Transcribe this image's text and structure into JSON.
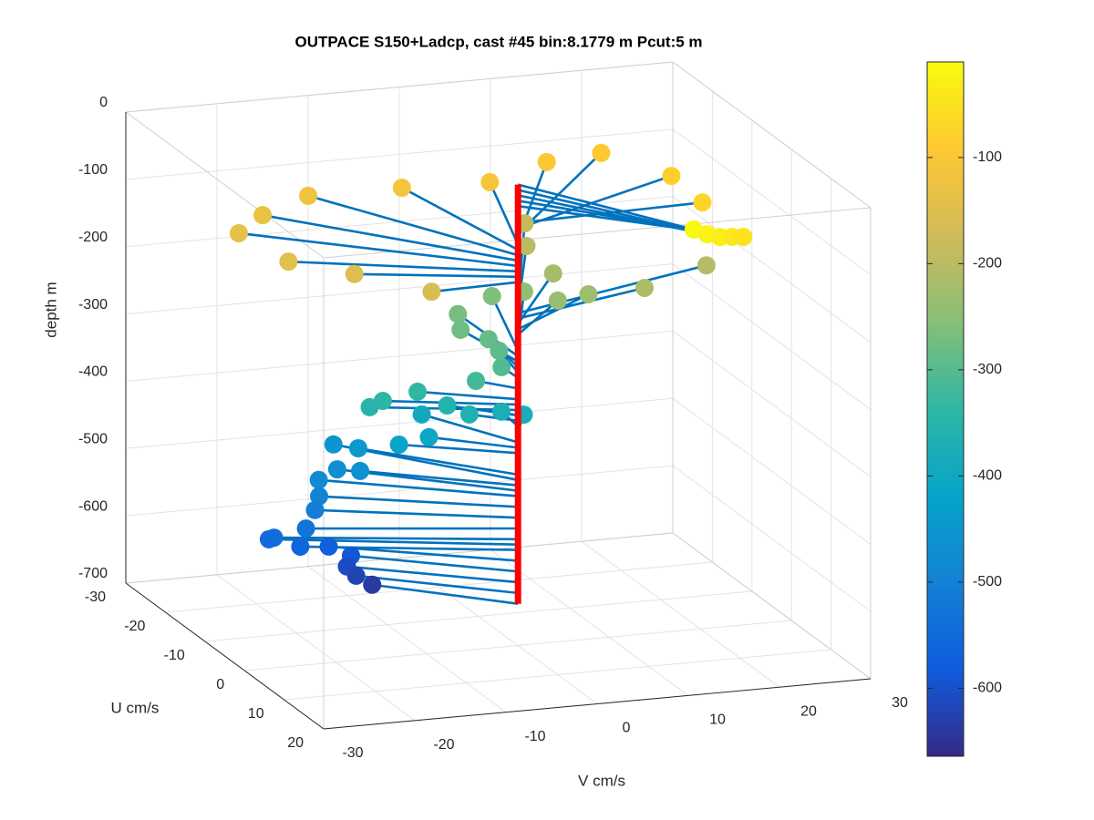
{
  "chart_data": {
    "type": "scatter3d",
    "title": "OUTPACE S150+Ladcp, cast #45 bin:8.1779 m  Pcut:5 m",
    "xlabel": "V cm/s",
    "ylabel": "U cm/s",
    "zlabel": "depth m",
    "xlim": [
      -30,
      30
    ],
    "xticks": [
      -30,
      -20,
      -10,
      0,
      10,
      20,
      30
    ],
    "ylim": [
      -30,
      20
    ],
    "yticks": [
      -30,
      -20,
      -10,
      0,
      10,
      20
    ],
    "zlim": [
      -700,
      0
    ],
    "zticks": [
      -700,
      -600,
      -500,
      -400,
      -300,
      -200,
      -100,
      0
    ],
    "grid": true,
    "line_color": "#0072bd",
    "profile_color": "#ff0000",
    "colormap": [
      "#352a87",
      "#0f5cdd",
      "#1481d6",
      "#06a4ca",
      "#2eb7a4",
      "#87bf77",
      "#d1bb59",
      "#fec832",
      "#f9fb0e"
    ],
    "clim": [
      -664,
      -10
    ],
    "cticks": [
      -600,
      -500,
      -400,
      -300,
      -200,
      -100
    ],
    "u": [
      18.6,
      18.8,
      18.4,
      17.0,
      15.7,
      -1.1,
      -11.7,
      -22.3,
      -22.7,
      -19.8,
      -22.2,
      -24.0,
      -21.0,
      -17.8,
      -9.4,
      -5.4,
      0.5,
      -23.9,
      -18.6,
      -9.3,
      -5.8,
      -14.4,
      -8.7,
      -9.3,
      -14.6,
      -17.4,
      -14.5,
      -11.3,
      -9.3,
      -7.1,
      -3.7,
      -3.5,
      -5.1,
      -4.9,
      -5.0,
      -5.0,
      -3.3,
      -4.9,
      -5.0,
      -11.2,
      -5.7,
      -5.9,
      -12.5,
      -16.0,
      -8.8,
      -11.6,
      -10.5,
      -8.8,
      -8.0,
      -5.9,
      -7.3,
      -8.6,
      -7.1,
      -9.6,
      -9.5,
      -9.6,
      -9.8,
      -9.9
    ],
    "v": [
      11.2,
      12.6,
      14.2,
      16.1,
      17.9,
      20.7,
      21.9,
      18.8,
      13.0,
      5.5,
      -3.1,
      -12.6,
      -18.9,
      -22.9,
      -21.1,
      -15.6,
      -9.7,
      11.1,
      9.0,
      24.7,
      16.4,
      10.1,
      11.5,
      8.4,
      7.0,
      4.7,
      -0.3,
      -1.4,
      0.8,
      1.0,
      -0.2,
      -3.1,
      -8.8,
      -12.7,
      -14.1,
      -5.6,
      -3.9,
      0.3,
      2.8,
      -5.7,
      -7.3,
      -10.5,
      -12.1,
      -13.3,
      -13.5,
      -14.8,
      -17.3,
      -18.0,
      -18.8,
      -20.7,
      -23.6,
      -23.6,
      -20.8,
      -16.6,
      -14.2,
      -14.6,
      -13.5,
      -11.7
    ],
    "depth": [
      -15,
      -23,
      -31,
      -39,
      -47,
      -72,
      -80,
      -88,
      -96,
      -104,
      -112,
      -120,
      -128,
      -136,
      -144,
      -152,
      -160,
      -190,
      -198,
      -206,
      -214,
      -222,
      -230,
      -238,
      -246,
      -262,
      -270,
      -278,
      -286,
      -294,
      -302,
      -318,
      -334,
      -342,
      -350,
      -358,
      -366,
      -374,
      -382,
      -398,
      -406,
      -414,
      -446,
      -454,
      -462,
      -470,
      -478,
      -494,
      -510,
      -526,
      -542,
      -550,
      -558,
      -574,
      -590,
      -606,
      -622,
      -638
    ]
  }
}
